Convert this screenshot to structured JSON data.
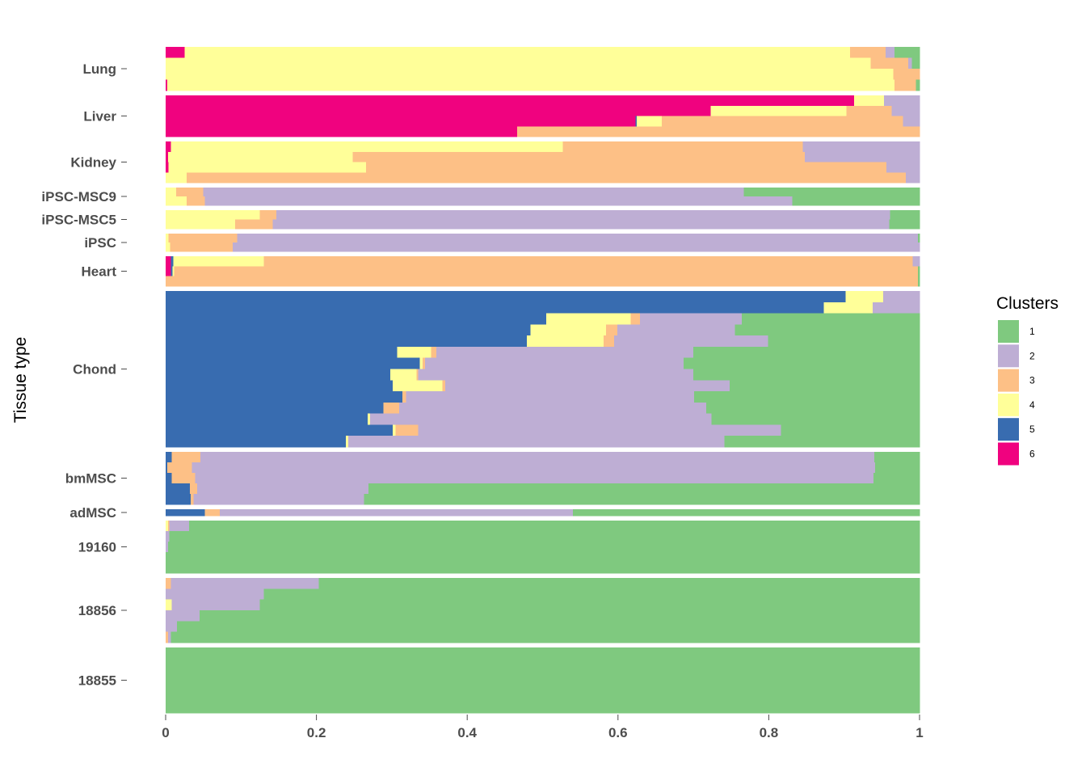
{
  "chart_data": {
    "type": "bar",
    "orientation": "horizontal",
    "stacked": true,
    "ylabel": "Tissue type",
    "xlim": [
      0,
      1
    ],
    "x_ticks": [
      "0",
      "0.2",
      "0.4",
      "0.6",
      "0.8",
      "1"
    ],
    "legend": {
      "title": "Clusters",
      "placement": "right",
      "entries": [
        {
          "label": "1",
          "color": "#7FC97F"
        },
        {
          "label": "2",
          "color": "#BEAED4"
        },
        {
          "label": "3",
          "color": "#FDC086"
        },
        {
          "label": "4",
          "color": "#FFFF99"
        },
        {
          "label": "5",
          "color": "#386CB0"
        },
        {
          "label": "6",
          "color": "#F0027F"
        }
      ]
    },
    "cluster_order": [
      "6",
      "5",
      "4",
      "3",
      "2",
      "1"
    ],
    "groups": [
      {
        "name": "Lung",
        "rows": [
          [
            0.025,
            0,
            0.883,
            0.047,
            0.012,
            0.033
          ],
          [
            0,
            0,
            0.935,
            0.05,
            0.005,
            0.01
          ],
          [
            0,
            0,
            0.965,
            0.035,
            0,
            0
          ],
          [
            0.002,
            0,
            0.965,
            0.028,
            0,
            0.005
          ]
        ]
      },
      {
        "name": "Liver",
        "rows": [
          [
            0.913,
            0,
            0.04,
            0,
            0.047,
            0
          ],
          [
            0.723,
            0,
            0.18,
            0.06,
            0.037,
            0
          ],
          [
            0.623,
            0.002,
            0.033,
            0.32,
            0.022,
            0
          ],
          [
            0.466,
            0,
            0,
            0.534,
            0,
            0
          ]
        ]
      },
      {
        "name": "Kidney",
        "rows": [
          [
            0.007,
            0,
            0.52,
            0.318,
            0.155,
            0
          ],
          [
            0.003,
            0,
            0.245,
            0.6,
            0.152,
            0
          ],
          [
            0.004,
            0,
            0.262,
            0.69,
            0.044,
            0
          ],
          [
            0,
            0,
            0.028,
            0.954,
            0.018,
            0
          ]
        ]
      },
      {
        "name": "iPSC-MSC9",
        "rows": [
          [
            0,
            0,
            0.014,
            0.036,
            0.717,
            0.233
          ],
          [
            0,
            0,
            0.028,
            0.024,
            0.779,
            0.169
          ]
        ]
      },
      {
        "name": "iPSC-MSC5",
        "rows": [
          [
            0,
            0,
            0.125,
            0.022,
            0.814,
            0.039
          ],
          [
            0,
            0,
            0.092,
            0.05,
            0.818,
            0.04
          ]
        ]
      },
      {
        "name": "iPSC",
        "rows": [
          [
            0,
            0,
            0.004,
            0.091,
            0.903,
            0.002
          ],
          [
            0,
            0,
            0.006,
            0.083,
            0.911,
            0
          ]
        ]
      },
      {
        "name": "Heart",
        "rows": [
          [
            0.007,
            0.003,
            0.12,
            0.861,
            0.015,
            0
          ],
          [
            0.007,
            0.002,
            0.002,
            0.987,
            0,
            0.002
          ],
          [
            0,
            0,
            0,
            0.998,
            0,
            0.002
          ]
        ]
      },
      {
        "name": "Chond",
        "rows": [
          [
            0,
            0.902,
            0.05,
            0,
            0.048,
            0
          ],
          [
            0,
            0.873,
            0.065,
            0,
            0.062,
            0
          ],
          [
            0,
            0.505,
            0.112,
            0.012,
            0.135,
            0.236
          ],
          [
            0,
            0.484,
            0.1,
            0.015,
            0.156,
            0.245
          ],
          [
            0,
            0.479,
            0.102,
            0.014,
            0.204,
            0.201
          ],
          [
            0,
            0.307,
            0.045,
            0.007,
            0.341,
            0.3
          ],
          [
            0,
            0.337,
            0.004,
            0.003,
            0.343,
            0.313
          ],
          [
            0,
            0.298,
            0.035,
            0.002,
            0.365,
            0.3
          ],
          [
            0,
            0.301,
            0.066,
            0.004,
            0.377,
            0.252
          ],
          [
            0,
            0.314,
            0,
            0.005,
            0.382,
            0.299
          ],
          [
            0,
            0.289,
            0,
            0.021,
            0.407,
            0.283
          ],
          [
            0,
            0.268,
            0.003,
            0,
            0.453,
            0.276
          ],
          [
            0,
            0.301,
            0.004,
            0.03,
            0.481,
            0.184
          ],
          [
            0,
            0.239,
            0.003,
            0,
            0.499,
            0.259
          ]
        ]
      },
      {
        "name": "bmMSC",
        "rows": [
          [
            0,
            0.008,
            0,
            0.038,
            0.894,
            0.06
          ],
          [
            0,
            0.002,
            0,
            0.033,
            0.906,
            0.059
          ],
          [
            0,
            0.008,
            0,
            0.031,
            0.9,
            0.061
          ],
          [
            0,
            0.032,
            0,
            0.01,
            0.227,
            0.731
          ],
          [
            0,
            0.033,
            0,
            0.004,
            0.226,
            0.737
          ]
        ]
      },
      {
        "name": "adMSC",
        "rows": [
          [
            0,
            0.052,
            0,
            0.02,
            0.468,
            0.46
          ]
        ]
      },
      {
        "name": "19160",
        "rows": [
          [
            0,
            0,
            0.003,
            0.002,
            0.026,
            0.969
          ],
          [
            0,
            0,
            0,
            0,
            0.005,
            0.995
          ],
          [
            0,
            0,
            0,
            0,
            0.003,
            0.997
          ],
          [
            0,
            0,
            0,
            0,
            0,
            1
          ],
          [
            0,
            0,
            0,
            0,
            0,
            1
          ]
        ]
      },
      {
        "name": "18856",
        "rows": [
          [
            0,
            0,
            0,
            0.007,
            0.196,
            0.797
          ],
          [
            0,
            0,
            0,
            0,
            0.13,
            0.87
          ],
          [
            0,
            0,
            0.008,
            0,
            0.117,
            0.875
          ],
          [
            0,
            0,
            0,
            0,
            0.045,
            0.955
          ],
          [
            0,
            0,
            0,
            0,
            0.015,
            0.985
          ],
          [
            0,
            0,
            0,
            0.003,
            0.004,
            0.993
          ]
        ]
      },
      {
        "name": "18855",
        "rows": [
          [
            0,
            0,
            0,
            0,
            0,
            1
          ]
        ]
      }
    ]
  }
}
